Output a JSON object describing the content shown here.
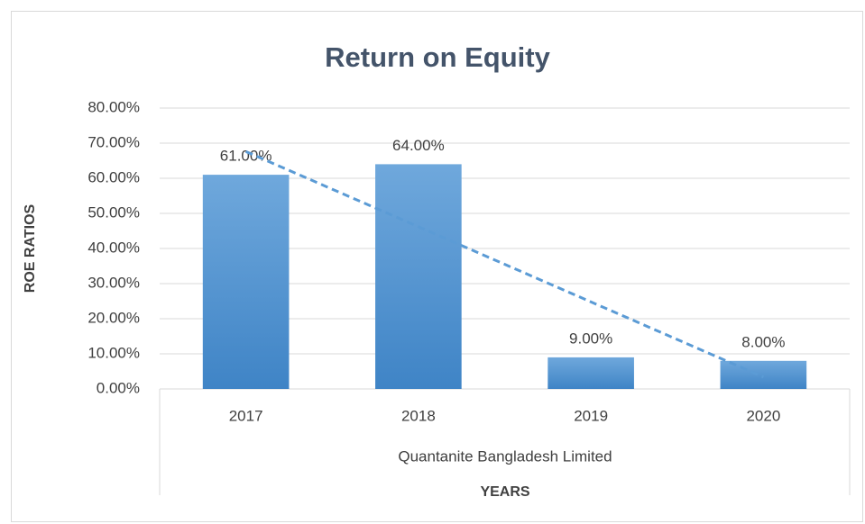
{
  "chart_data": {
    "type": "bar",
    "title": "Return on Equity",
    "x_label": "YEARS",
    "y_label": "ROE RATIOS",
    "category_group": "Quantanite Bangladesh Limited",
    "categories": [
      "2017",
      "2018",
      "2019",
      "2020"
    ],
    "values": [
      61,
      64,
      9,
      8
    ],
    "value_labels": [
      "61.00%",
      "64.00%",
      "9.00%",
      "8.00%"
    ],
    "color": "#5b9bd5",
    "trendline": "linear",
    "ylim": [
      0,
      80
    ],
    "yticks": [
      {
        "value": 0,
        "label": "0.00%"
      },
      {
        "value": 10,
        "label": "10.00%"
      },
      {
        "value": 20,
        "label": "20.00%"
      },
      {
        "value": 30,
        "label": "30.00%"
      },
      {
        "value": 40,
        "label": "40.00%"
      },
      {
        "value": 50,
        "label": "50.00%"
      },
      {
        "value": 60,
        "label": "60.00%"
      },
      {
        "value": 70,
        "label": "70.00%"
      },
      {
        "value": 80,
        "label": "80.00%"
      }
    ],
    "grid": true
  }
}
